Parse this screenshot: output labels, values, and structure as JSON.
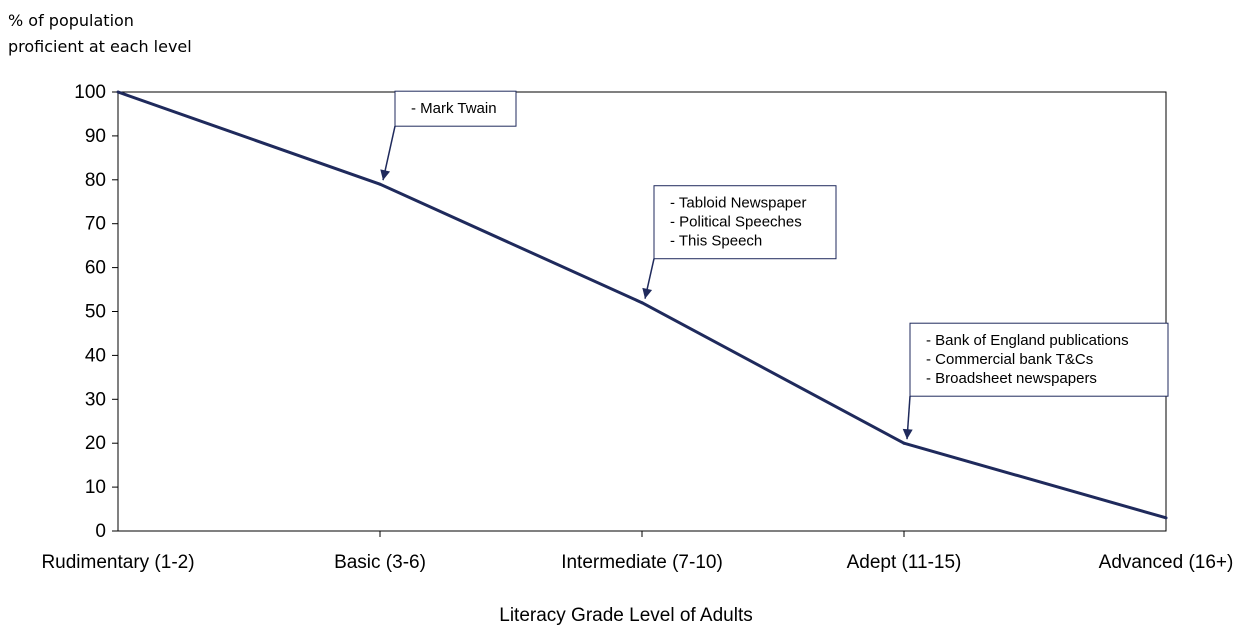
{
  "chart_data": {
    "type": "line",
    "ylabel": [
      "% of population",
      "proficient at each level"
    ],
    "xlabel": "Literacy Grade Level of Adults",
    "categories": [
      "Rudimentary (1-2)",
      "Basic (3-6)",
      "Intermediate (7-10)",
      "Adept (11-15)",
      "Advanced (16+)"
    ],
    "series": [
      {
        "values": [
          100,
          79,
          52,
          20,
          3
        ]
      }
    ],
    "ylim": [
      0,
      100
    ],
    "yticks": [
      0,
      10,
      20,
      30,
      40,
      50,
      60,
      70,
      80,
      90,
      100
    ],
    "grid": false,
    "line_color": "#1f2a5c",
    "annotations": [
      {
        "lines": [
          "- Mark Twain"
        ],
        "target_index": 1
      },
      {
        "lines": [
          "- Tabloid Newspaper",
          "- Political Speeches",
          "- This Speech"
        ],
        "target_index": 2
      },
      {
        "lines": [
          "- Bank of England publications",
          "- Commercial bank T&Cs",
          "- Broadsheet newspapers"
        ],
        "target_index": 3
      }
    ]
  }
}
